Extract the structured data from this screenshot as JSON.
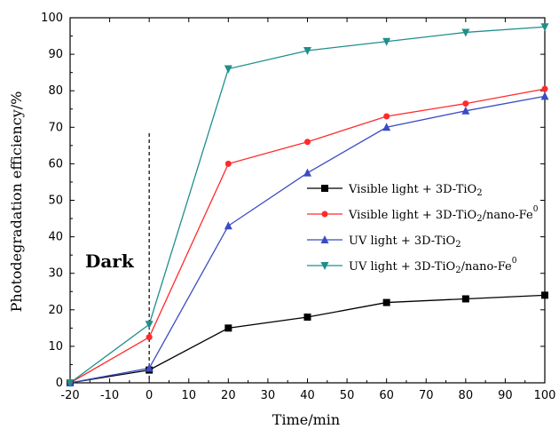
{
  "chart_data": {
    "type": "line",
    "xlabel": "Time/min",
    "ylabel": "Photodegradation efficiency/%",
    "xlim": [
      -20,
      100
    ],
    "ylim": [
      0,
      100
    ],
    "xticks": [
      -20,
      -10,
      0,
      10,
      20,
      30,
      40,
      50,
      60,
      70,
      80,
      90,
      100
    ],
    "yticks": [
      0,
      10,
      20,
      30,
      40,
      50,
      60,
      70,
      80,
      90,
      100
    ],
    "x": [
      -20,
      0,
      20,
      40,
      60,
      80,
      100
    ],
    "grid": false,
    "legend_position": "right",
    "annotation": {
      "text": "Dark",
      "x_marker": 0
    },
    "series": [
      {
        "name": "Visible light + 3D-TiO2",
        "legend_parts": [
          [
            "Visible light + 3D-TiO",
            ""
          ],
          [
            "2",
            "sub"
          ]
        ],
        "marker": "square",
        "color": "#000000",
        "values": [
          0,
          3.5,
          15,
          18,
          22,
          23,
          24
        ]
      },
      {
        "name": "Visible light + 3D-TiO2/nano-Fe0",
        "legend_parts": [
          [
            "Visible light + 3D-TiO",
            ""
          ],
          [
            "2",
            "sub"
          ],
          [
            "/nano-Fe",
            ""
          ],
          [
            "0",
            "sup"
          ]
        ],
        "marker": "circle",
        "color": "#ff2a2a",
        "values": [
          0,
          12.5,
          60,
          66,
          73,
          76.5,
          80.5
        ]
      },
      {
        "name": "UV light + 3D-TiO2",
        "legend_parts": [
          [
            "UV light + 3D-TiO",
            ""
          ],
          [
            "2",
            "sub"
          ]
        ],
        "marker": "triangle-up",
        "color": "#3a4cc4",
        "values": [
          0,
          4,
          43,
          57.5,
          70,
          74.5,
          78.5
        ]
      },
      {
        "name": "UV light + 3D-TiO2/nano-Fe0",
        "legend_parts": [
          [
            "UV light + 3D-TiO",
            ""
          ],
          [
            "2",
            "sub"
          ],
          [
            "/nano-Fe",
            ""
          ],
          [
            "0",
            "sup"
          ]
        ],
        "marker": "triangle-down",
        "color": "#1f8f8c",
        "values": [
          0,
          16,
          86,
          91,
          93.5,
          96,
          97.5
        ]
      }
    ]
  }
}
